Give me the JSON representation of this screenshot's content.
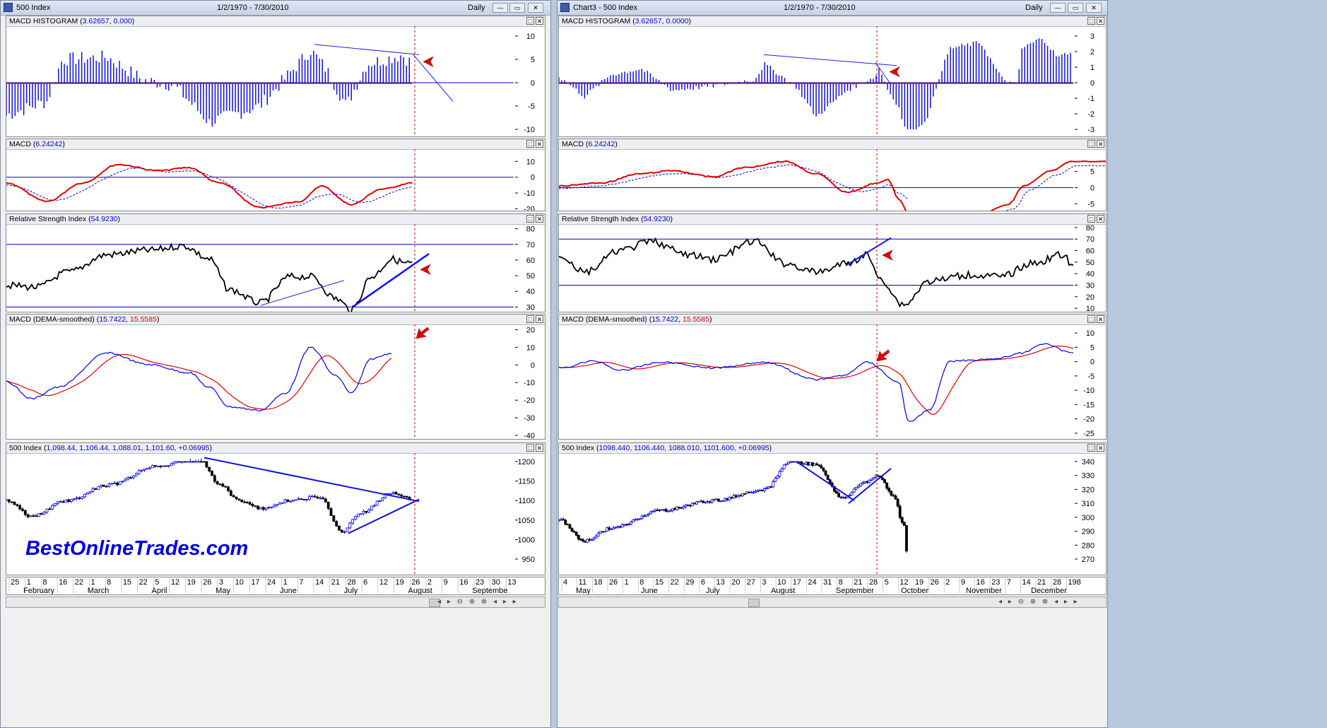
{
  "left_window": {
    "title": "500 Index",
    "range": "1/2/1970 - 7/30/2010",
    "period": "Daily",
    "panes": [
      {
        "name": "MACD HISTOGRAM",
        "v1": "3.62657",
        "v2": "0.000",
        "ticks": [
          "10",
          "5",
          "0",
          "-5",
          "-10"
        ]
      },
      {
        "name": "MACD",
        "v1": "6.24242",
        "ticks": [
          "10",
          "0",
          "-10",
          "-20"
        ]
      },
      {
        "name": "Relative Strength Index",
        "v1": "54.9230",
        "ticks": [
          "80",
          "70",
          "60",
          "50",
          "40",
          "30"
        ]
      },
      {
        "name": "MACD (DEMA-smoothed)",
        "v1": "15.7422",
        "v2": "15.5585",
        "ticks": [
          "20",
          "10",
          "0",
          "-10",
          "-20",
          "-30",
          "-40"
        ]
      },
      {
        "name": "500 Index",
        "v1": "1,098.44, 1,106.44, 1,088.01, 1,101.60, +0.06995",
        "ticks": [
          "1200",
          "1150",
          "1100",
          "1050",
          "1000",
          "950"
        ]
      }
    ],
    "x_days": [
      "25",
      "1",
      "8",
      "16",
      "22",
      "1",
      "8",
      "15",
      "22",
      "5",
      "12",
      "19",
      "26",
      "3",
      "10",
      "17",
      "24",
      "1",
      "7",
      "14",
      "21",
      "28",
      "6",
      "12",
      "19",
      "26",
      "2",
      "9",
      "16",
      "23",
      "30",
      "13"
    ],
    "x_months": [
      "February",
      "March",
      "April",
      "May",
      "June",
      "July",
      "August",
      "Septembe"
    ]
  },
  "right_window": {
    "title": "Chart3 - 500 Index",
    "range": "1/2/1970 - 7/30/2010",
    "period": "Daily",
    "panes": [
      {
        "name": "MACD HISTOGRAM",
        "v1": "3.62657",
        "v2": "0.0000",
        "ticks": [
          "3",
          "2",
          "1",
          "0",
          "-1",
          "-2",
          "-3"
        ]
      },
      {
        "name": "MACD",
        "v1": "6.24242",
        "ticks": [
          "5",
          "0",
          "-5"
        ]
      },
      {
        "name": "Relative Strength Index",
        "v1": "54.9230",
        "ticks": [
          "80",
          "70",
          "60",
          "50",
          "40",
          "30",
          "20",
          "10"
        ]
      },
      {
        "name": "MACD (DEMA-smoothed)",
        "v1": "15.7422",
        "v2": "15.5585",
        "ticks": [
          "10",
          "5",
          "0",
          "-5",
          "-10",
          "-15",
          "-20",
          "-25"
        ]
      },
      {
        "name": "500 Index",
        "v1": "1098.440, 1106.440, 1088.010, 1101.600, +0.06995",
        "ticks": [
          "340",
          "330",
          "320",
          "310",
          "300",
          "290",
          "280",
          "270"
        ]
      }
    ],
    "x_days": [
      "4",
      "11",
      "18",
      "26",
      "1",
      "8",
      "15",
      "22",
      "29",
      "6",
      "13",
      "20",
      "27",
      "3",
      "10",
      "17",
      "24",
      "31",
      "8",
      "21",
      "28",
      "5",
      "12",
      "19",
      "26",
      "2",
      "9",
      "16",
      "23",
      "7",
      "14",
      "21",
      "28",
      "198"
    ],
    "x_months": [
      "May",
      "June",
      "July",
      "August",
      "September",
      "October",
      "November",
      "December"
    ]
  },
  "watermark": "BestOnlineTrades.com",
  "colors": {
    "up": "#0000ee",
    "down": "#000000",
    "signal": "#e00000",
    "zero": "#0000cc",
    "vline": "#cc0000"
  }
}
